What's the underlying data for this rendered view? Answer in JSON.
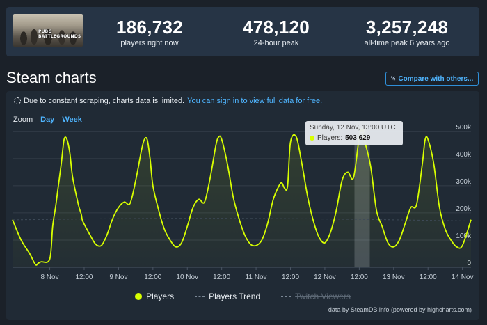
{
  "game": {
    "logo_line1": "PUBG",
    "logo_line2": "BATTLEGROUNDS"
  },
  "stats": [
    {
      "value": "186,732",
      "label": "players right now"
    },
    {
      "value": "478,120",
      "label": "24-hour peak"
    },
    {
      "value": "3,257,248",
      "label": "all-time peak 6 years ago"
    }
  ],
  "page": {
    "title": "Steam charts",
    "compare_label": "Compare with others...",
    "compare_icon": "½"
  },
  "notice": {
    "text": "Due to constant scraping, charts data is limited.",
    "link": "You can sign in to view full data for free."
  },
  "zoom": {
    "label": "Zoom",
    "day": "Day",
    "week": "Week"
  },
  "tooltip": {
    "date": "Sunday, 12 Nov, 13:00 UTC",
    "series": "Players:",
    "value": "503 629"
  },
  "legend": {
    "players": "Players",
    "trend": "Players Trend",
    "twitch": "Twitch Viewers"
  },
  "credit": "data by SteamDB.info (powered by highcharts.com)",
  "colors": {
    "players": "#d8ff00",
    "accent": "#4fb5ff",
    "panel": "#202a35"
  },
  "chart_data": {
    "type": "line",
    "ylabel": "",
    "ylim": [
      0,
      520000
    ],
    "yticks": [
      "0",
      "100k",
      "200k",
      "300k",
      "400k",
      "500k"
    ],
    "ytick_values": [
      0,
      100000,
      200000,
      300000,
      400000,
      500000
    ],
    "xticks": [
      "8 Nov",
      "12:00",
      "9 Nov",
      "12:00",
      "10 Nov",
      "12:00",
      "11 Nov",
      "12:00",
      "12 Nov",
      "12:00",
      "13 Nov",
      "12:00",
      "14 Nov"
    ],
    "xtick_hours": [
      0,
      12,
      24,
      36,
      48,
      60,
      72,
      84,
      96,
      108,
      120,
      132,
      144
    ],
    "hover_hour": 109,
    "series": [
      {
        "name": "Players",
        "x_hours": [
          -13,
          -10,
          -7,
          -5,
          -4,
          -3,
          0,
          1,
          2,
          3,
          4,
          5,
          6,
          7,
          8,
          10,
          11,
          11.5,
          14,
          16,
          18,
          20,
          22,
          24,
          26,
          28,
          30,
          32,
          33,
          34,
          35,
          36,
          38,
          40,
          42,
          44,
          46,
          48,
          50,
          52,
          54,
          56,
          58,
          59,
          60,
          62,
          64,
          66,
          68,
          70,
          72,
          74,
          76,
          78,
          80,
          81,
          82,
          83,
          84,
          86,
          88,
          90,
          92,
          94,
          96,
          98,
          100,
          102,
          104,
          106,
          108,
          109,
          110,
          112,
          114,
          116,
          118,
          120,
          122,
          124,
          126,
          128,
          130,
          131,
          132,
          134,
          136,
          138,
          140,
          142,
          144,
          147
        ],
        "values": [
          175000,
          100000,
          50000,
          10000,
          15000,
          20000,
          30000,
          150000,
          220000,
          300000,
          380000,
          470000,
          470000,
          420000,
          330000,
          230000,
          195000,
          170000,
          120000,
          85000,
          80000,
          120000,
          180000,
          220000,
          240000,
          235000,
          320000,
          430000,
          470000,
          470000,
          400000,
          300000,
          210000,
          140000,
          100000,
          75000,
          90000,
          150000,
          220000,
          250000,
          240000,
          330000,
          450000,
          480000,
          470000,
          380000,
          260000,
          180000,
          120000,
          85000,
          80000,
          100000,
          160000,
          250000,
          300000,
          310000,
          290000,
          300000,
          460000,
          480000,
          380000,
          260000,
          170000,
          110000,
          90000,
          130000,
          210000,
          320000,
          350000,
          330000,
          480000,
          503629,
          460000,
          370000,
          210000,
          150000,
          90000,
          75000,
          100000,
          160000,
          220000,
          230000,
          380000,
          470000,
          470000,
          380000,
          220000,
          140000,
          100000,
          75000,
          80000,
          175000
        ]
      }
    ],
    "grid": true,
    "legend_position": "bottom-center"
  }
}
